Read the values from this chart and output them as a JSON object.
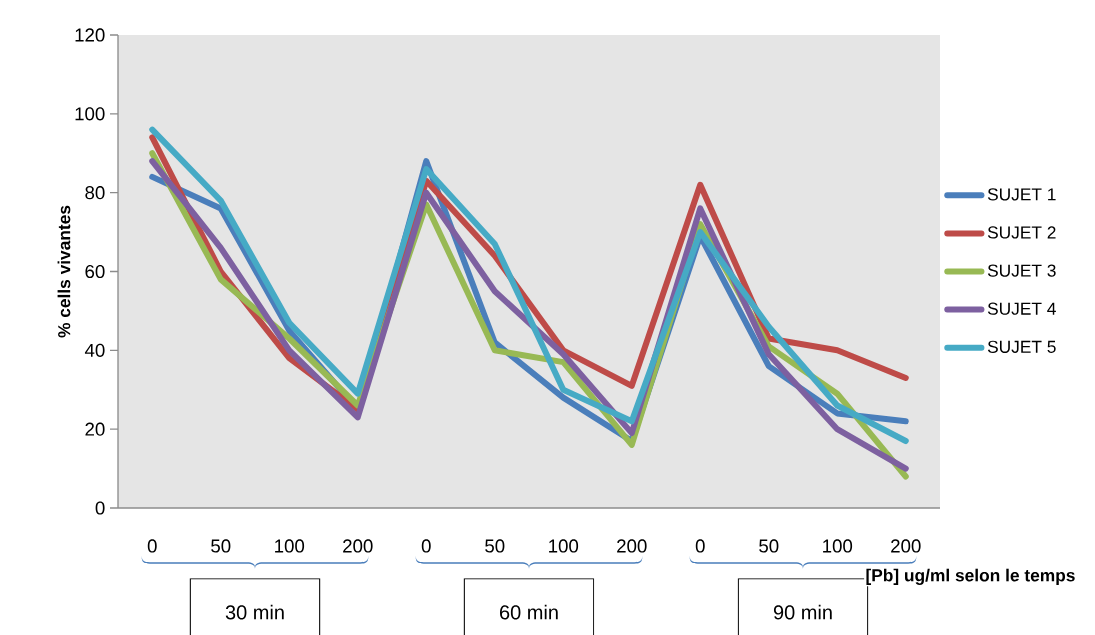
{
  "chart_data": {
    "type": "line",
    "xlabel": "[Pb] ug/ml selon le temps",
    "ylabel": "% cells vivantes",
    "categories": [
      "0",
      "50",
      "100",
      "200",
      "0",
      "50",
      "100",
      "200",
      "0",
      "50",
      "100",
      "200"
    ],
    "series": [
      {
        "name": "SUJET 1",
        "color": "#4a7ebb",
        "values": [
          84,
          76,
          45,
          25,
          88,
          42,
          28,
          17,
          69,
          36,
          24,
          22
        ]
      },
      {
        "name": "SUJET 2",
        "color": "#be4b48",
        "values": [
          94,
          60,
          38,
          25,
          83,
          64,
          40,
          31,
          82,
          43,
          40,
          33
        ]
      },
      {
        "name": "SUJET 3",
        "color": "#98b954",
        "values": [
          90,
          58,
          43,
          26,
          77,
          40,
          37,
          16,
          72,
          41,
          29,
          8
        ]
      },
      {
        "name": "SUJET 4",
        "color": "#7d60a0",
        "values": [
          88,
          66,
          40,
          23,
          80,
          55,
          39,
          19,
          76,
          39,
          20,
          10
        ]
      },
      {
        "name": "SUJET 5",
        "color": "#46aac5",
        "values": [
          96,
          78,
          47,
          29,
          86,
          67,
          30,
          22,
          70,
          46,
          26,
          17
        ]
      }
    ],
    "ylim": [
      0,
      120
    ],
    "yticks": [
      0,
      20,
      40,
      60,
      80,
      100,
      120
    ],
    "legend": "right",
    "annotations": [
      "30 min",
      "60 min",
      "90 min"
    ]
  }
}
